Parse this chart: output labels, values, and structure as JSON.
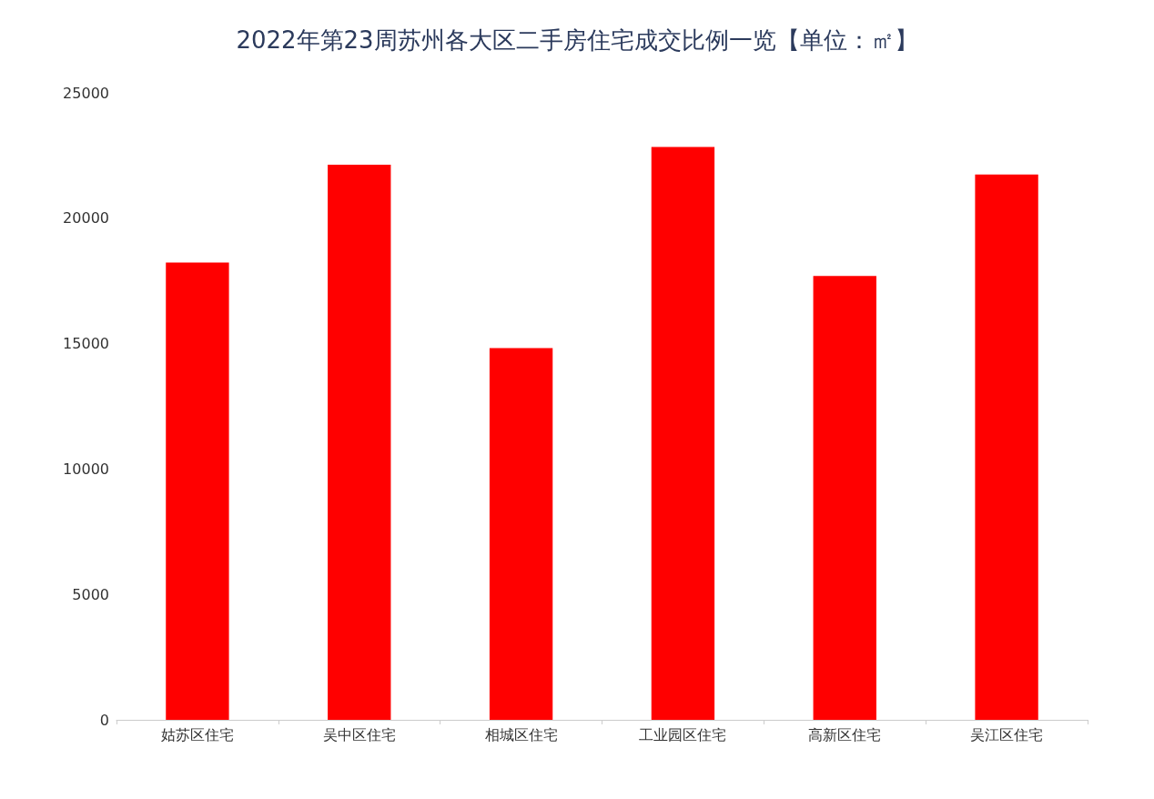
{
  "chart_data": {
    "type": "bar",
    "title": "2022年第23周苏州各大区二手房住宅成交比例一览【单位：㎡】",
    "categories": [
      "姑苏区住宅",
      "吴中区住宅",
      "相城区住宅",
      "工业园区住宅",
      "高新区住宅",
      "吴江区住宅"
    ],
    "values": [
      18230,
      22130,
      14820,
      22840,
      17700,
      21740
    ],
    "color": "#ff0000",
    "ylim": [
      0,
      25000
    ],
    "yticks": [
      0,
      5000,
      10000,
      15000,
      20000,
      25000
    ],
    "grid": false
  }
}
